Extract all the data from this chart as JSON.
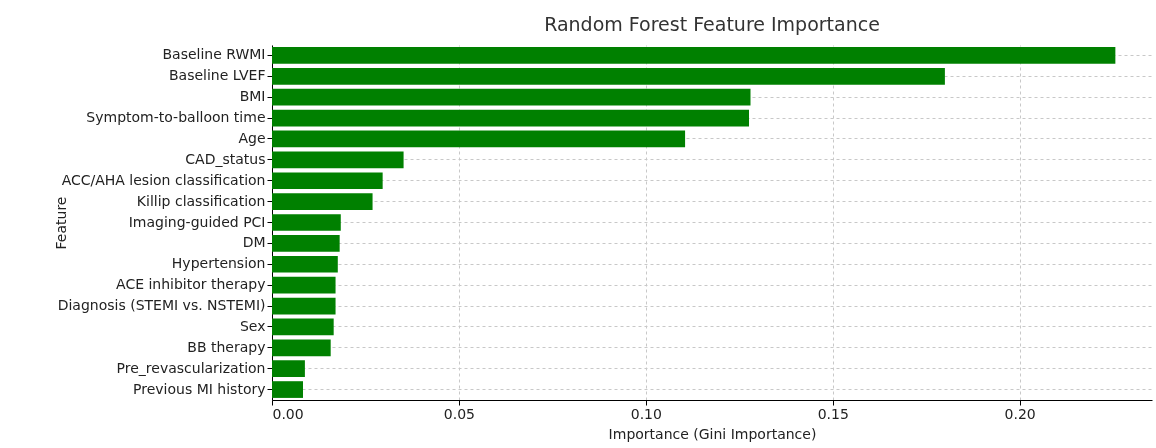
{
  "chart_data": {
    "type": "bar",
    "orientation": "horizontal",
    "title": "Random Forest Feature Importance",
    "xlabel": "Importance (Gini Importance)",
    "ylabel": "Feature",
    "categories": [
      "Baseline RWMI",
      "Baseline LVEF",
      "BMI",
      "Symptom-to-balloon time",
      "Age",
      "CAD_status",
      "ACC/AHA lesion classification",
      "Killip classification",
      "Imaging-guided PCI",
      "DM",
      "Hypertension",
      "ACE inhibitor therapy",
      "Diagnosis (STEMI vs. NSTEMI)",
      "Sex",
      "BB therapy",
      "Pre_revascularization",
      "Previous MI history"
    ],
    "values": [
      0.2256,
      0.18,
      0.128,
      0.1276,
      0.1105,
      0.0352,
      0.0296,
      0.0269,
      0.0184,
      0.0181,
      0.0176,
      0.017,
      0.017,
      0.0165,
      0.0157,
      0.0088,
      0.0083
    ],
    "color": "#008000",
    "xlim": [
      0,
      0.2354
    ],
    "xticks": [
      {
        "value": 0,
        "label": "0.00"
      },
      {
        "value": 0.05,
        "label": "0.05"
      },
      {
        "value": 0.1,
        "label": "0.10"
      },
      {
        "value": 0.15,
        "label": "0.15"
      },
      {
        "value": 0.2,
        "label": "0.20"
      }
    ],
    "grid": true
  }
}
